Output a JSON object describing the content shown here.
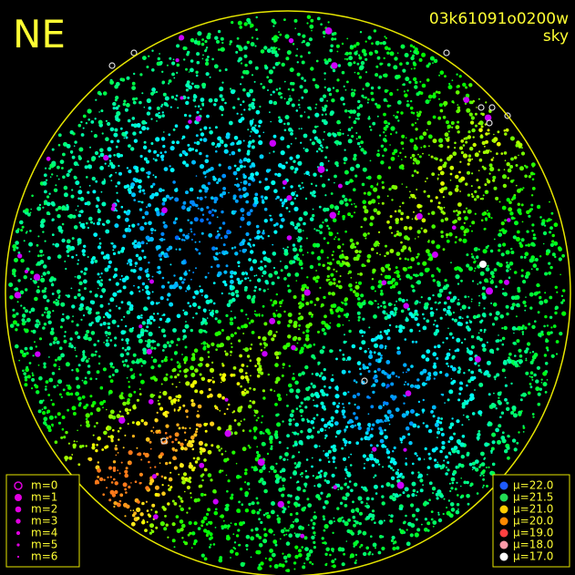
{
  "corner_label": "NE",
  "header": {
    "id": "03k61091o0200w",
    "mode": "sky"
  },
  "magnitude_legend": [
    "m=0",
    "m=1",
    "m=2",
    "m=3",
    "m=4",
    "m=5",
    "m=6"
  ],
  "brightness_legend": [
    "μ=22.0",
    "μ=21.5",
    "μ=21.0",
    "μ=20.0",
    "μ=19.0",
    "μ=18.0",
    "μ=17.0"
  ]
}
